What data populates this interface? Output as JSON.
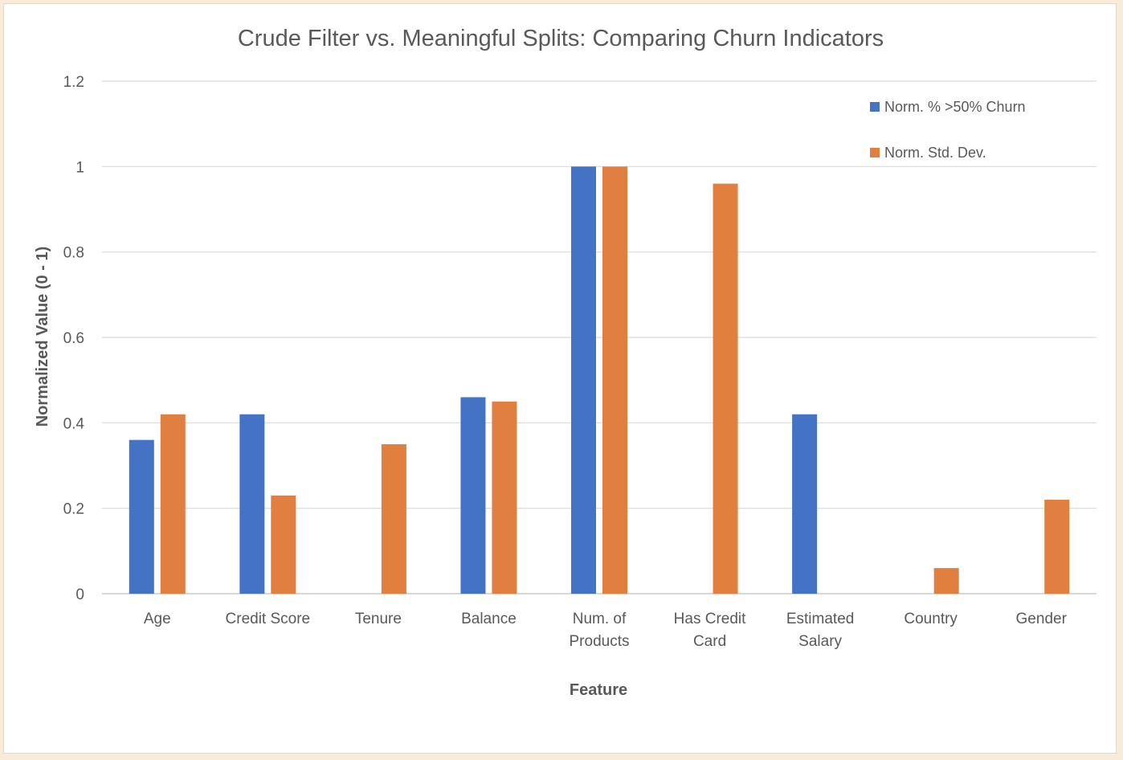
{
  "chart_data": {
    "type": "bar",
    "title": "Crude Filter vs. Meaningful Splits: Comparing Churn Indicators",
    "xlabel": "Feature",
    "ylabel": "Normalized Value (0 - 1)",
    "ylim": [
      0,
      1.2
    ],
    "yticks": [
      "0",
      "0.2",
      "0.4",
      "0.6",
      "0.8",
      "1",
      "1.2"
    ],
    "grid": true,
    "legend_position": "top-right",
    "categories": [
      [
        "Age"
      ],
      [
        "Credit Score"
      ],
      [
        "Tenure"
      ],
      [
        "Balance"
      ],
      [
        "Num. of",
        "Products"
      ],
      [
        "Has Credit",
        "Card"
      ],
      [
        "Estimated",
        "Salary"
      ],
      [
        "Country"
      ],
      [
        "Gender"
      ]
    ],
    "series": [
      {
        "name": "Norm. % >50% Churn",
        "color": "#4472c4",
        "values": [
          0.36,
          0.42,
          0,
          0.46,
          1.0,
          0,
          0.42,
          0,
          0
        ]
      },
      {
        "name": "Norm. Std. Dev.",
        "color": "#e07f3f",
        "values": [
          0.42,
          0.23,
          0.35,
          0.45,
          1.0,
          0.96,
          0,
          0.06,
          0.22
        ]
      }
    ]
  }
}
